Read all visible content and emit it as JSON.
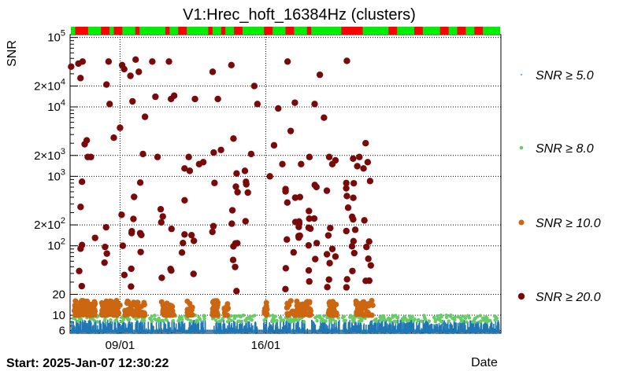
{
  "chart_data": {
    "type": "scatter",
    "title": "V1:Hrec_hoft_16384Hz (clusters)",
    "xlabel": "Date",
    "ylabel": "SNR",
    "yscale": "log",
    "ylim": [
      5.5,
      110000
    ],
    "xlim": [
      -1.4,
      19.3
    ],
    "x_unit": "days after 08/01 00:00",
    "x_ticks": [
      {
        "label": "09/01",
        "x": 1.0
      },
      {
        "label": "16/01",
        "x": 8.0
      }
    ],
    "y_ticks": [
      {
        "label": "6",
        "y": 6
      },
      {
        "label": "10",
        "y": 10
      },
      {
        "label": "20",
        "y": 20
      },
      {
        "label": "10^2",
        "y": 100
      },
      {
        "label": "2×10^2",
        "y": 200
      },
      {
        "label": "10^3",
        "y": 1000
      },
      {
        "label": "2×10^3",
        "y": 2000
      },
      {
        "label": "10^4",
        "y": 10000
      },
      {
        "label": "2×10^4",
        "y": 20000
      },
      {
        "label": "10^5",
        "y": 100000
      }
    ],
    "grid": true,
    "legend_position": "right",
    "series": [
      {
        "name": "SNR ≥ 5.0",
        "color": "#1f77b4",
        "band_y": [
          5.5,
          8.5
        ],
        "note_density": "dense"
      },
      {
        "name": "SNR ≥ 8.0",
        "color": "#66cc66",
        "band_y": [
          8.0,
          10.0
        ]
      },
      {
        "name": "SNR ≥ 10.0",
        "color": "#cc6611",
        "band_y": [
          10.0,
          20.0
        ]
      },
      {
        "name": "SNR ≥ 20.0",
        "color": "#7a0a0a",
        "points": [
          [
            -1.35,
            38000
          ],
          [
            -1.0,
            42000
          ],
          [
            -0.9,
            26000
          ],
          [
            -0.8,
            45000
          ],
          [
            -0.7,
            2900
          ],
          [
            -0.6,
            3300
          ],
          [
            -0.55,
            1900
          ],
          [
            -0.4,
            1900
          ],
          [
            -0.2,
            130
          ],
          [
            0.35,
            21000
          ],
          [
            0.45,
            45000
          ],
          [
            0.5,
            11000
          ],
          [
            0.7,
            3600
          ],
          [
            1.0,
            5000
          ],
          [
            1.1,
            40000
          ],
          [
            1.2,
            35000
          ],
          [
            1.5,
            28000
          ],
          [
            1.6,
            12000
          ],
          [
            1.75,
            48000
          ],
          [
            1.9,
            32000
          ],
          [
            2.1,
            2100
          ],
          [
            2.2,
            7200
          ],
          [
            2.55,
            45000
          ],
          [
            2.7,
            14000
          ],
          [
            2.8,
            1900
          ],
          [
            3.35,
            45000
          ],
          [
            3.45,
            13000
          ],
          [
            3.6,
            14500
          ],
          [
            4.1,
            1300
          ],
          [
            4.3,
            1900
          ],
          [
            4.35,
            1200
          ],
          [
            4.6,
            13000
          ],
          [
            4.8,
            1500
          ],
          [
            5.0,
            1600
          ],
          [
            5.45,
            32000
          ],
          [
            5.5,
            2200
          ],
          [
            5.7,
            13000
          ],
          [
            5.85,
            2400
          ],
          [
            6.35,
            40000
          ],
          [
            6.45,
            3500
          ],
          [
            6.6,
            1100
          ],
          [
            7.0,
            1200
          ],
          [
            7.3,
            2100
          ],
          [
            7.45,
            20000
          ],
          [
            7.6,
            11000
          ],
          [
            8.2,
            1000
          ],
          [
            8.4,
            2800
          ],
          [
            8.6,
            9500
          ],
          [
            8.8,
            1500
          ],
          [
            9.05,
            45000
          ],
          [
            9.2,
            4500
          ],
          [
            9.4,
            11500
          ],
          [
            9.7,
            1500
          ],
          [
            10.1,
            1900
          ],
          [
            10.35,
            11000
          ],
          [
            10.6,
            29000
          ],
          [
            10.8,
            7000
          ],
          [
            11.05,
            1900
          ],
          [
            11.2,
            1500
          ],
          [
            11.35,
            1700
          ],
          [
            11.9,
            46000
          ],
          [
            12.2,
            1800
          ],
          [
            12.4,
            1400
          ],
          [
            12.5,
            1900
          ],
          [
            12.7,
            1300
          ],
          [
            12.9,
            1600
          ],
          [
            12.8,
            3000
          ],
          [
            11.1,
            180
          ],
          [
            11.9,
            520
          ],
          [
            12.2,
            240
          ],
          [
            12.3,
            170
          ],
          [
            11.2,
            90
          ],
          [
            11.35,
            70
          ]
        ]
      }
    ],
    "dq_bar": {
      "colors": {
        "ok": "#00ee00",
        "bad": "#ff0000"
      }
    },
    "footer_left": "Start: 2025-Jan-07 12:30:22"
  }
}
